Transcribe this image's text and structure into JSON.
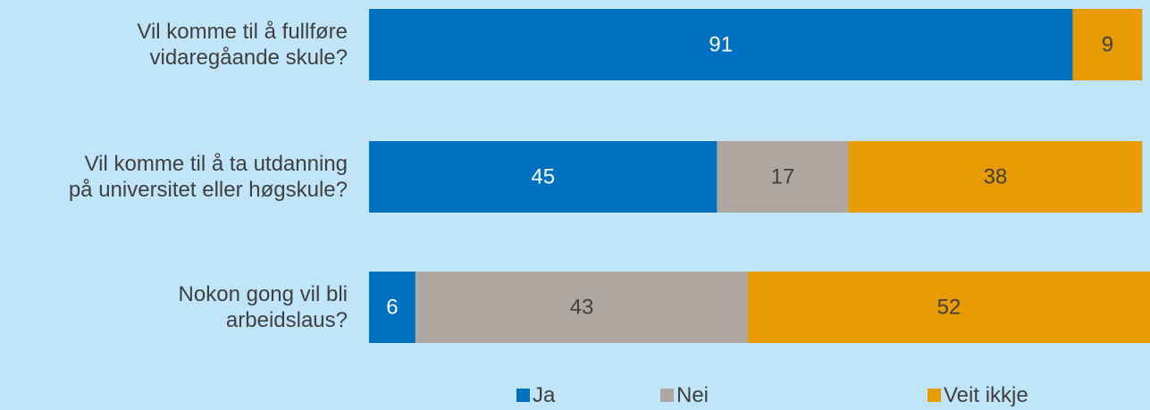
{
  "chart_data": {
    "type": "stacked-bar-horizontal",
    "categories": [
      "Vil komme til å fullføre\nvidaregåande skule?",
      "Vil komme til å ta utdanning\npå universitet eller høgskule?",
      "Nokon gong vil bli\narbeidslaus?"
    ],
    "series": [
      {
        "name": "Ja",
        "color": "#0070c0",
        "values": [
          91,
          45,
          6
        ]
      },
      {
        "name": "Nei",
        "color": "#aea6a0",
        "values": [
          null,
          17,
          43
        ]
      },
      {
        "name": "Veit ikkje",
        "color": "#e89b00",
        "values": [
          9,
          38,
          52
        ]
      }
    ],
    "xlim": [
      0,
      101
    ]
  }
}
